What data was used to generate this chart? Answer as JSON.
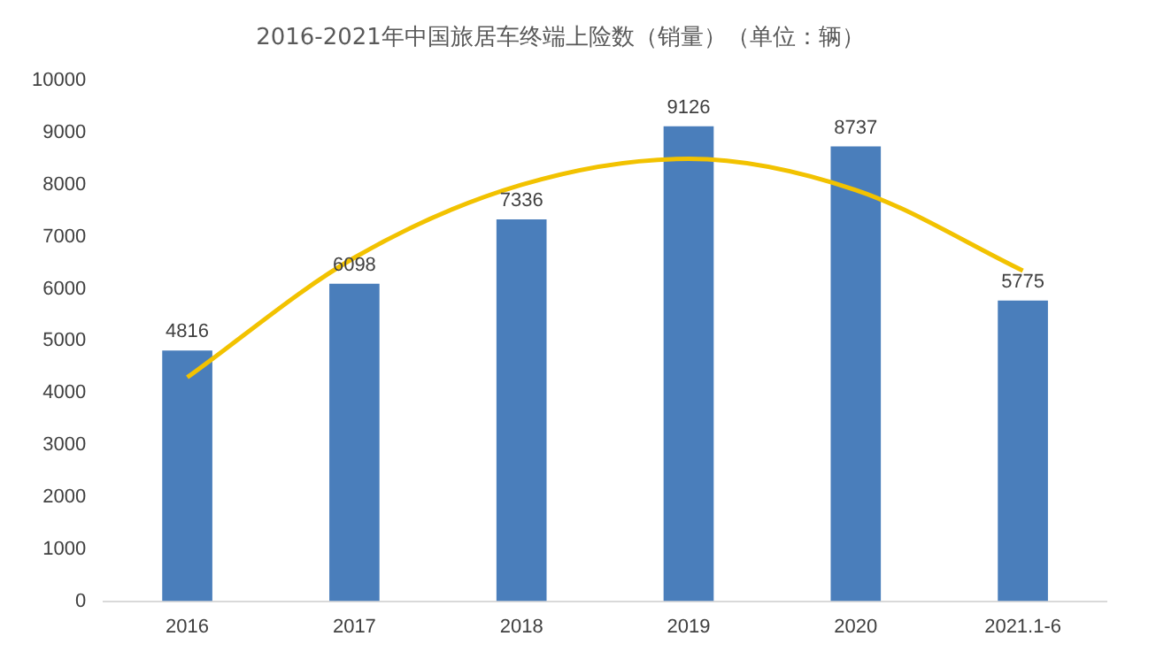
{
  "chart_data": {
    "type": "bar",
    "title": "2016-2021年中国旅居车终端上险数（销量）（单位：辆）",
    "categories": [
      "2016",
      "2017",
      "2018",
      "2019",
      "2020",
      "2021.1-6"
    ],
    "ylim": [
      0,
      10000
    ],
    "yticks": [
      0,
      1000,
      2000,
      3000,
      4000,
      5000,
      6000,
      7000,
      8000,
      9000,
      10000
    ],
    "grid": false,
    "legend": false,
    "series": [
      {
        "color": "#4a7ebb",
        "values": [
          4816,
          6098,
          7336,
          9126,
          8737,
          5775
        ],
        "value_labels": [
          "4816",
          "6098",
          "7336",
          "9126",
          "8737",
          "5775"
        ]
      },
      {
        "type": "line",
        "color": "#f2c200",
        "values": [
          4300,
          6600,
          8000,
          8500,
          7900,
          6350
        ],
        "marker": "none"
      }
    ]
  }
}
